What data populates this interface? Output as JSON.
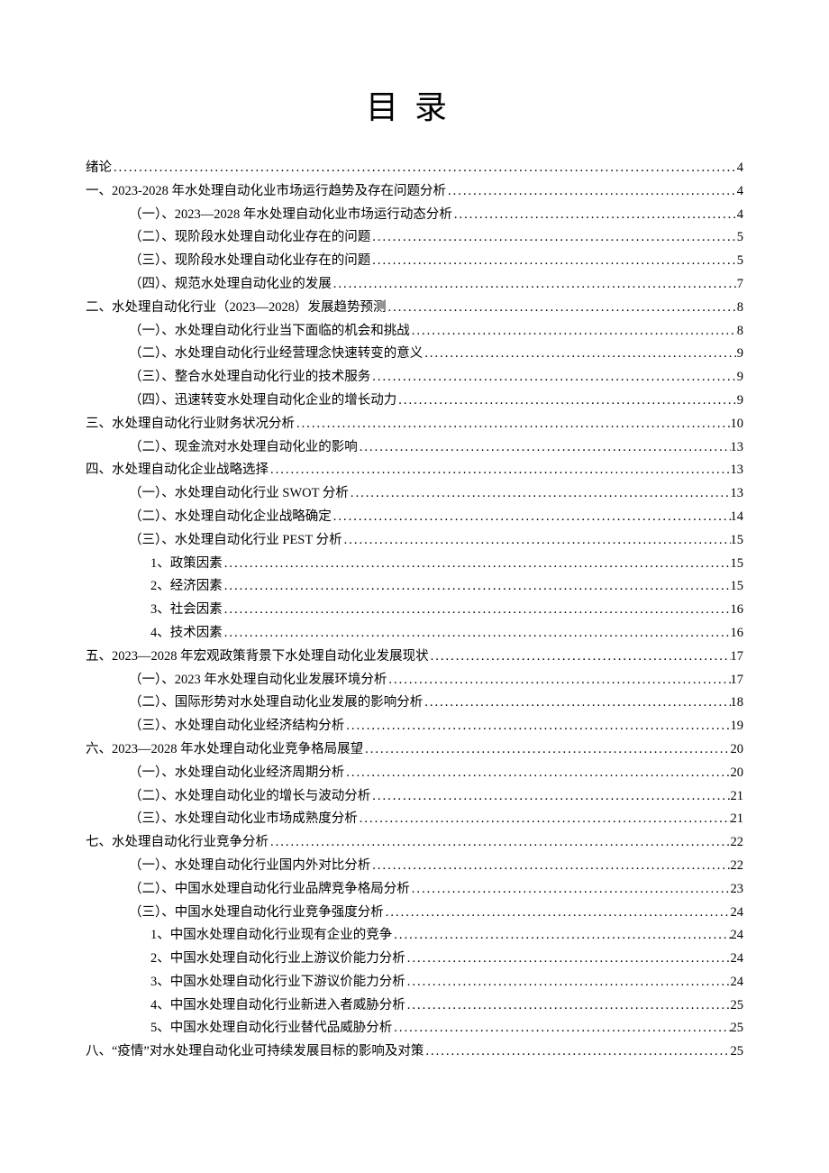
{
  "title": "目录",
  "toc": [
    {
      "level": 0,
      "label": "绪论",
      "page": "4"
    },
    {
      "level": 0,
      "label": "一、2023-2028 年水处理自动化业市场运行趋势及存在问题分析",
      "page": "4"
    },
    {
      "level": 1,
      "label": "（一）、2023—2028 年水处理自动化业市场运行动态分析",
      "page": "4"
    },
    {
      "level": 1,
      "label": "（二）、现阶段水处理自动化业存在的问题",
      "page": "5"
    },
    {
      "level": 1,
      "label": "（三）、现阶段水处理自动化业存在的问题",
      "page": "5"
    },
    {
      "level": 1,
      "label": "（四）、规范水处理自动化业的发展",
      "page": "7"
    },
    {
      "level": 0,
      "label": "二、水处理自动化行业（2023—2028）发展趋势预测",
      "page": "8"
    },
    {
      "level": 1,
      "label": "（一）、水处理自动化行业当下面临的机会和挑战",
      "page": "8"
    },
    {
      "level": 1,
      "label": "（二）、水处理自动化行业经营理念快速转变的意义",
      "page": "9"
    },
    {
      "level": 1,
      "label": "（三）、整合水处理自动化行业的技术服务",
      "page": "9"
    },
    {
      "level": 1,
      "label": "（四）、迅速转变水处理自动化企业的增长动力",
      "page": "9"
    },
    {
      "level": 0,
      "label": "三、水处理自动化行业财务状况分析",
      "page": "10"
    },
    {
      "level": 1,
      "label": "（二）、现金流对水处理自动化业的影响",
      "page": "13"
    },
    {
      "level": 0,
      "label": "四、水处理自动化企业战略选择",
      "page": "13"
    },
    {
      "level": 1,
      "label": "（一）、水处理自动化行业 SWOT 分析",
      "page": "13"
    },
    {
      "level": 1,
      "label": "（二）、水处理自动化企业战略确定",
      "page": "14"
    },
    {
      "level": 1,
      "label": "（三）、水处理自动化行业 PEST 分析",
      "page": "15"
    },
    {
      "level": 2,
      "label": "1、政策因素",
      "page": "15"
    },
    {
      "level": 2,
      "label": "2、经济因素",
      "page": "15"
    },
    {
      "level": 2,
      "label": "3、社会因素",
      "page": "16"
    },
    {
      "level": 2,
      "label": "4、技术因素",
      "page": "16"
    },
    {
      "level": 0,
      "label": "五、2023—2028 年宏观政策背景下水处理自动化业发展现状",
      "page": "17"
    },
    {
      "level": 1,
      "label": "（一）、2023 年水处理自动化业发展环境分析",
      "page": "17"
    },
    {
      "level": 1,
      "label": "（二）、国际形势对水处理自动化业发展的影响分析",
      "page": "18"
    },
    {
      "level": 1,
      "label": "（三）、水处理自动化业经济结构分析",
      "page": "19"
    },
    {
      "level": 0,
      "label": "六、2023—2028 年水处理自动化业竞争格局展望",
      "page": "20"
    },
    {
      "level": 1,
      "label": "（一）、水处理自动化业经济周期分析",
      "page": "20"
    },
    {
      "level": 1,
      "label": "（二）、水处理自动化业的增长与波动分析",
      "page": "21"
    },
    {
      "level": 1,
      "label": "（三）、水处理自动化业市场成熟度分析",
      "page": "21"
    },
    {
      "level": 0,
      "label": "七、水处理自动化行业竞争分析",
      "page": "22"
    },
    {
      "level": 1,
      "label": "（一）、水处理自动化行业国内外对比分析",
      "page": "22"
    },
    {
      "level": 1,
      "label": "（二）、中国水处理自动化行业品牌竞争格局分析",
      "page": "23"
    },
    {
      "level": 1,
      "label": "（三）、中国水处理自动化行业竞争强度分析",
      "page": "24"
    },
    {
      "level": 2,
      "label": "1、中国水处理自动化行业现有企业的竞争",
      "page": "24"
    },
    {
      "level": 2,
      "label": "2、中国水处理自动化行业上游议价能力分析",
      "page": "24"
    },
    {
      "level": 2,
      "label": "3、中国水处理自动化行业下游议价能力分析",
      "page": "24"
    },
    {
      "level": 2,
      "label": "4、中国水处理自动化行业新进入者威胁分析",
      "page": "25"
    },
    {
      "level": 2,
      "label": "5、中国水处理自动化行业替代品威胁分析",
      "page": "25"
    },
    {
      "level": 0,
      "label": "八、“疫情”对水处理自动化业可持续发展目标的影响及对策",
      "page": "25"
    }
  ]
}
